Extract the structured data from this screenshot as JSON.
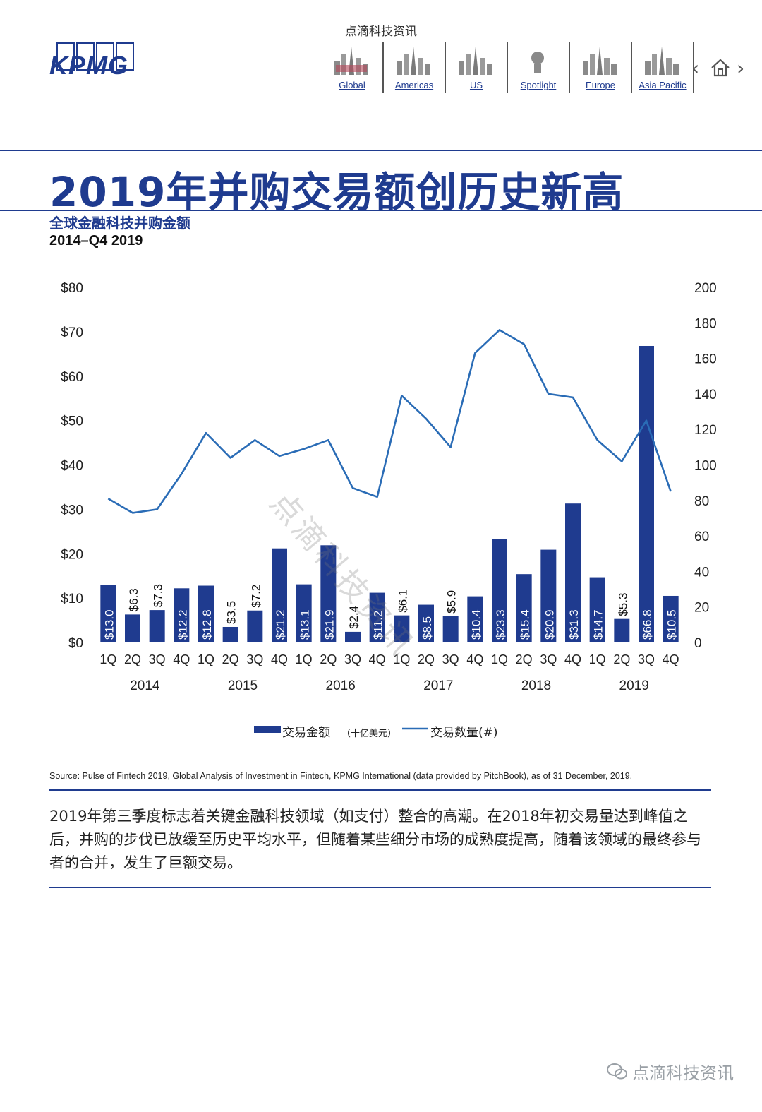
{
  "header": {
    "top_caption": "点滴科技资讯",
    "logo_text": "KPMG",
    "nav": [
      {
        "label": "Global",
        "icon": "global-skyline-icon"
      },
      {
        "label": "Americas",
        "icon": "americas-skyline-icon"
      },
      {
        "label": "US",
        "icon": "us-skyline-icon"
      },
      {
        "label": "Spotlight",
        "icon": "spotlight-head-icon"
      },
      {
        "label": "Europe",
        "icon": "europe-skyline-icon"
      },
      {
        "label": "Asia Pacific",
        "icon": "asia-pacific-skyline-icon"
      }
    ],
    "prev_glyph": "‹",
    "home_icon": "home-icon",
    "next_glyph": "›"
  },
  "page": {
    "title": "2019年并购交易额创历史新高",
    "subtitle": "全球金融科技并购金额",
    "period": "2014–Q4 2019",
    "source": "Source: Pulse of Fintech 2019, Global Analysis of Investment in Fintech, KPMG International (data provided by PitchBook), as of 31 December, 2019.",
    "body": "2019年第三季度标志着关键金融科技领域（如支付）整合的高潮。在2018年初交易量达到峰值之后，并购的步伐已放缓至历史平均水平，但随着某些细分市场的成熟度提高，随着该领域的最终参与者的合并，发生了巨额交易。",
    "watermark": "点滴科技资讯",
    "diagonal_watermark": "点滴科技资讯"
  },
  "colors": {
    "brand": "#1f3b8f",
    "bar": "#1f3b8f",
    "line": "#2a6cb6"
  },
  "chart_data": {
    "type": "bar+line",
    "quarters": [
      "1Q",
      "2Q",
      "3Q",
      "4Q",
      "1Q",
      "2Q",
      "3Q",
      "4Q",
      "1Q",
      "2Q",
      "3Q",
      "4Q",
      "1Q",
      "2Q",
      "3Q",
      "4Q",
      "1Q",
      "2Q",
      "3Q",
      "4Q",
      "1Q",
      "2Q",
      "3Q",
      "4Q"
    ],
    "years": [
      "2014",
      "2015",
      "2016",
      "2017",
      "2018",
      "2019"
    ],
    "series": [
      {
        "name": "交易金额（十亿美元）",
        "type": "bar",
        "axis": "left",
        "values": [
          13.0,
          6.3,
          7.3,
          12.2,
          12.8,
          3.5,
          7.2,
          21.2,
          13.1,
          21.9,
          2.4,
          11.2,
          6.1,
          8.5,
          5.9,
          10.4,
          23.3,
          15.4,
          20.9,
          31.3,
          14.7,
          5.3,
          66.8,
          10.5
        ],
        "labels": [
          "$13.0",
          "$6.3",
          "$7.3",
          "$12.2",
          "$12.8",
          "$3.5",
          "$7.2",
          "$21.2",
          "$13.1",
          "$21.9",
          "$2.4",
          "$11.2",
          "$6.1",
          "$8.5",
          "$5.9",
          "$10.4",
          "$23.3",
          "$15.4",
          "$20.9",
          "$31.3",
          "$14.7",
          "$5.3",
          "$66.8",
          "$10.5"
        ]
      },
      {
        "name": "交易数量(#)",
        "type": "line",
        "axis": "right",
        "values": [
          81,
          73,
          75,
          95,
          118,
          104,
          114,
          105,
          109,
          114,
          87,
          82,
          139,
          126,
          110,
          163,
          176,
          168,
          140,
          138,
          114,
          102,
          125,
          85
        ]
      }
    ],
    "left_axis": {
      "min": 0,
      "max": 80,
      "ticks": [
        "$0",
        "$10",
        "$20",
        "$30",
        "$40",
        "$50",
        "$60",
        "$70",
        "$80"
      ]
    },
    "right_axis": {
      "min": 0,
      "max": 200,
      "ticks": [
        "0",
        "20",
        "40",
        "60",
        "80",
        "100",
        "120",
        "140",
        "160",
        "180",
        "200"
      ]
    },
    "legend": {
      "bar": "交易金额",
      "bar_unit": "（十亿美元）",
      "line": "交易数量(#)"
    },
    "legend_position": "bottom"
  }
}
